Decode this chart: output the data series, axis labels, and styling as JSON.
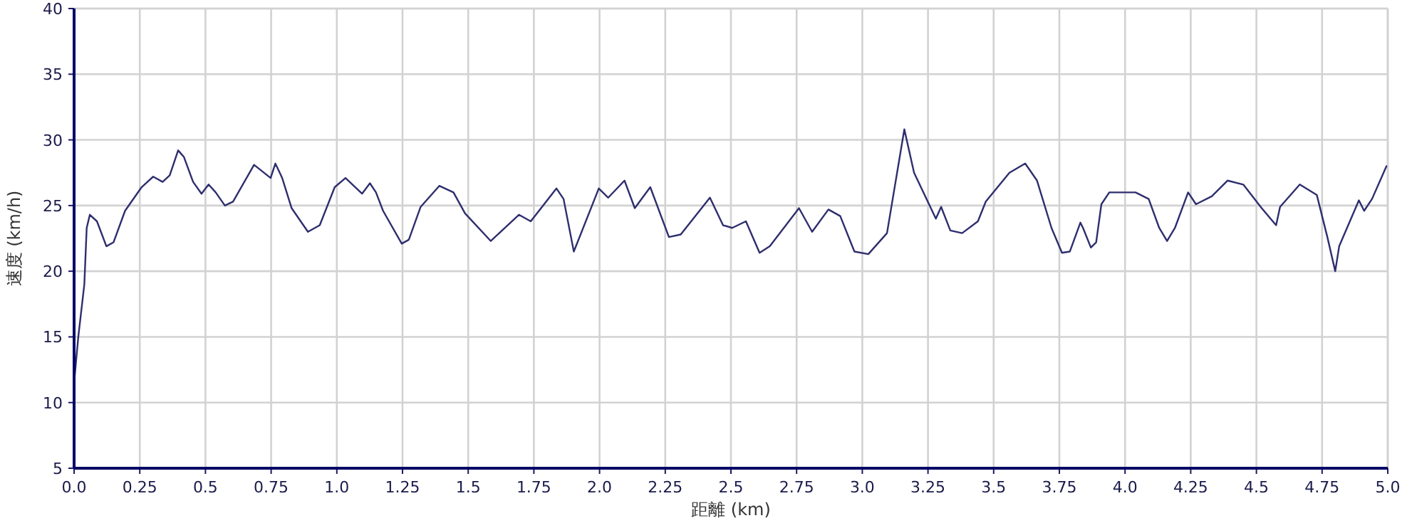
{
  "chart_data": {
    "type": "line",
    "xlabel": "距離 (km)",
    "ylabel": "速度 (km/h)",
    "xlim": [
      0,
      5
    ],
    "ylim": [
      5,
      40
    ],
    "xticks": [
      {
        "value": 0,
        "label": "0.0"
      },
      0.25,
      0.5,
      0.75,
      {
        "value": 1,
        "label": "1.0"
      },
      1.25,
      1.5,
      1.75,
      {
        "value": 2,
        "label": "2.0"
      },
      2.25,
      2.5,
      2.75,
      {
        "value": 3,
        "label": "3.0"
      },
      3.25,
      3.5,
      3.75,
      {
        "value": 4,
        "label": "4.0"
      },
      4.25,
      4.5,
      4.75,
      {
        "value": 5,
        "label": "5.0"
      }
    ],
    "yticks": [
      5,
      10,
      15,
      20,
      25,
      30,
      35,
      40
    ],
    "grid": true,
    "line_style": "solid",
    "series": [
      {
        "color": "#2e2e6e",
        "x": [
          0,
          0.016,
          0.039,
          0.048,
          0.06,
          0.087,
          0.123,
          0.15,
          0.194,
          0.257,
          0.301,
          0.337,
          0.364,
          0.396,
          0.418,
          0.453,
          0.485,
          0.512,
          0.539,
          0.574,
          0.605,
          0.685,
          0.748,
          0.766,
          0.792,
          0.828,
          0.89,
          0.935,
          0.992,
          1.033,
          1.096,
          1.126,
          1.149,
          1.176,
          1.247,
          1.274,
          1.319,
          1.39,
          1.444,
          1.488,
          1.586,
          1.693,
          1.738,
          1.836,
          1.863,
          1.902,
          1.997,
          2.033,
          2.095,
          2.134,
          2.193,
          2.264,
          2.309,
          2.42,
          2.47,
          2.505,
          2.557,
          2.609,
          2.648,
          2.759,
          2.809,
          2.871,
          2.916,
          2.97,
          3.023,
          3.094,
          3.16,
          3.197,
          3.28,
          3.3,
          3.335,
          3.38,
          3.44,
          3.47,
          3.56,
          3.62,
          3.665,
          3.72,
          3.76,
          3.79,
          3.83,
          3.84,
          3.87,
          3.89,
          3.91,
          3.94,
          4.04,
          4.09,
          4.13,
          4.16,
          4.19,
          4.24,
          4.27,
          4.33,
          4.39,
          4.45,
          4.52,
          4.575,
          4.59,
          4.665,
          4.73,
          4.77,
          4.8,
          4.815,
          4.89,
          4.91,
          4.94,
          4.995
        ],
        "values": [
          11.5,
          15.0,
          19.0,
          23.3,
          24.3,
          23.8,
          21.9,
          22.2,
          24.6,
          26.4,
          27.2,
          26.8,
          27.3,
          29.2,
          28.7,
          26.8,
          25.9,
          26.6,
          26.0,
          25.0,
          25.3,
          28.1,
          27.1,
          28.2,
          27.1,
          24.8,
          23.0,
          23.5,
          26.4,
          27.1,
          25.9,
          26.7,
          26.0,
          24.6,
          22.1,
          22.4,
          24.9,
          26.5,
          26.0,
          24.4,
          22.3,
          24.3,
          23.8,
          26.3,
          25.5,
          21.5,
          26.3,
          25.6,
          26.9,
          24.8,
          26.4,
          22.6,
          22.8,
          25.6,
          23.5,
          23.3,
          23.8,
          21.4,
          21.9,
          24.8,
          23.0,
          24.7,
          24.2,
          21.5,
          21.3,
          22.9,
          30.8,
          27.5,
          24.0,
          24.9,
          23.1,
          22.9,
          23.8,
          25.3,
          27.5,
          28.2,
          26.9,
          23.3,
          21.4,
          21.5,
          23.7,
          23.3,
          21.8,
          22.2,
          25.1,
          26.0,
          26.0,
          25.5,
          23.3,
          22.3,
          23.3,
          26.0,
          25.1,
          25.7,
          26.9,
          26.6,
          24.8,
          23.5,
          24.9,
          26.6,
          25.8,
          22.6,
          20.0,
          21.9,
          25.4,
          24.6,
          25.5,
          28.0
        ]
      }
    ]
  }
}
